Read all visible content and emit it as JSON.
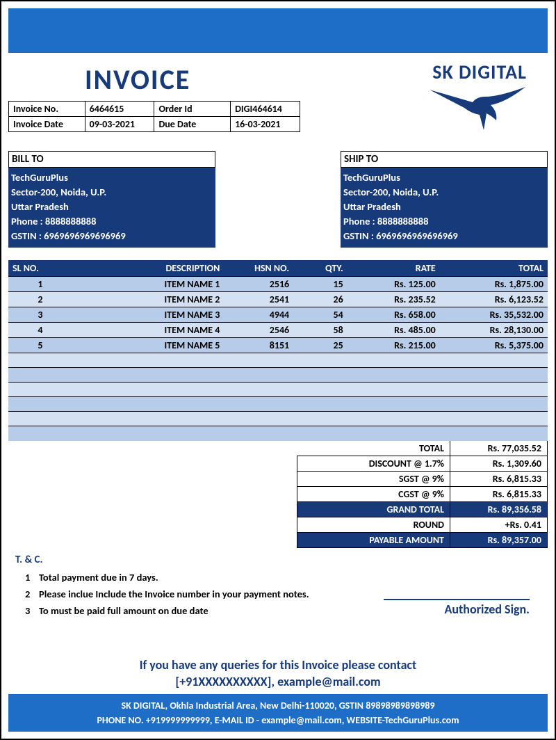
{
  "colors": {
    "brand_blue": "#1e6ec8",
    "navy": "#173a7a",
    "row_a": "#b7cce8",
    "row_b": "#d4e1f2"
  },
  "header": {
    "title": "INVOICE",
    "invoice_no_label": "Invoice No.",
    "invoice_no": "6464615",
    "order_id_label": "Order Id",
    "order_id": "DIGI464614",
    "invoice_date_label": "Invoice Date",
    "invoice_date": "09-03-2021",
    "due_date_label": "Due Date",
    "due_date": "16-03-2021"
  },
  "brand": {
    "name": "SK DIGITAL"
  },
  "bill_to": {
    "heading": "BILL TO",
    "name": "TechGuruPlus",
    "line1": "Sector-200, Noida, U.P.",
    "line2": "Uttar Pradesh",
    "phone": "Phone : 8888888888",
    "gstin": "GSTIN : 6969696969696969"
  },
  "ship_to": {
    "heading": "SHIP TO",
    "name": "TechGuruPlus",
    "line1": "Sector-200, Noida, U.P.",
    "line2": "Uttar Pradesh",
    "phone": "Phone : 8888888888",
    "gstin": "GSTIN : 6969696969696969"
  },
  "table": {
    "headers": {
      "sl": "SL NO.",
      "desc": "DESCRIPTION",
      "hsn": "HSN NO.",
      "qty": "QTY.",
      "rate": "RATE",
      "total": "TOTAL"
    },
    "rows": [
      {
        "sl": "1",
        "desc": "ITEM NAME 1",
        "hsn": "2516",
        "qty": "15",
        "rate": "Rs. 125.00",
        "total": "Rs. 1,875.00"
      },
      {
        "sl": "2",
        "desc": "ITEM NAME 2",
        "hsn": "2541",
        "qty": "26",
        "rate": "Rs. 235.52",
        "total": "Rs. 6,123.52"
      },
      {
        "sl": "3",
        "desc": "ITEM NAME 3",
        "hsn": "4944",
        "qty": "54",
        "rate": "Rs. 658.00",
        "total": "Rs. 35,532.00"
      },
      {
        "sl": "4",
        "desc": "ITEM NAME 4",
        "hsn": "2546",
        "qty": "58",
        "rate": "Rs. 485.00",
        "total": "Rs. 28,130.00"
      },
      {
        "sl": "5",
        "desc": "ITEM NAME 5",
        "hsn": "8151",
        "qty": "25",
        "rate": "Rs. 215.00",
        "total": "Rs. 5,375.00"
      }
    ]
  },
  "totals": {
    "sub_label": "TOTAL",
    "sub_value": "Rs. 77,035.52",
    "discount_label": "DISCOUNT @ 1.7%",
    "discount_value": "Rs. 1,309.60",
    "sgst_label": "SGST @  9%",
    "sgst_value": "Rs. 6,815.33",
    "cgst_label": "CGST @ 9%",
    "cgst_value": "Rs. 6,815.33",
    "grand_label": "GRAND TOTAL",
    "grand_value": "Rs. 89,356.58",
    "round_label": "ROUND",
    "round_value": "+Rs. 0.41",
    "payable_label": "PAYABLE AMOUNT",
    "payable_value": "Rs. 89,357.00"
  },
  "tc": {
    "heading": "T. & C.",
    "items": [
      "Total payment due in 7 days.",
      "Please inclue Include the Invoice number in your payment notes.",
      "To must be paid full amount on due date"
    ]
  },
  "signature": "Authorized Sign.",
  "contact": {
    "line1": "If you have any queries for this Invoice  please contact",
    "line2": "[+91XXXXXXXXXX], example@mail.com"
  },
  "footer": {
    "line1": "SK DIGITAL, Okhla Industrial Area, New Delhi-110020, GSTIN 89898989898989",
    "line2": "PHONE NO. +919999999999, E-MAIL ID - example@mail.com, WEBSITE-TechGuruPlus.com"
  }
}
